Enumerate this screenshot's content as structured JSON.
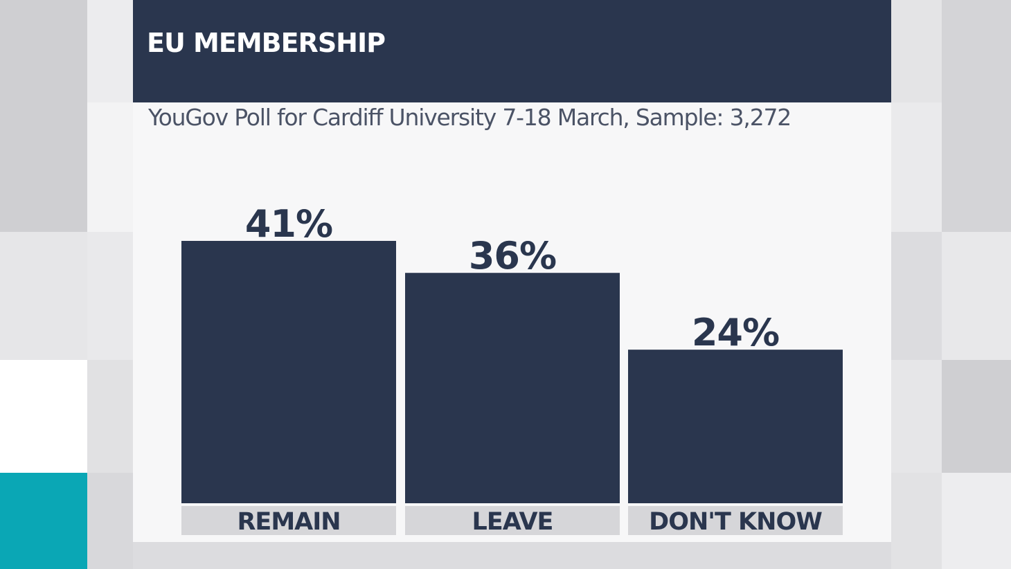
{
  "header": {
    "title": "EU MEMBERSHIP",
    "subtitle": "YouGov Poll for Cardiff University 7-18 March, Sample: 3,272"
  },
  "colors": {
    "bar": "#2a364e",
    "category_box": "#d6d6d9",
    "accent": "#0aa7b5"
  },
  "chart_data": {
    "type": "bar",
    "categories": [
      "REMAIN",
      "LEAVE",
      "DON'T KNOW"
    ],
    "values": [
      41,
      36,
      24
    ],
    "value_labels": [
      "41%",
      "36%",
      "24%"
    ],
    "ylim": [
      0,
      41
    ]
  }
}
